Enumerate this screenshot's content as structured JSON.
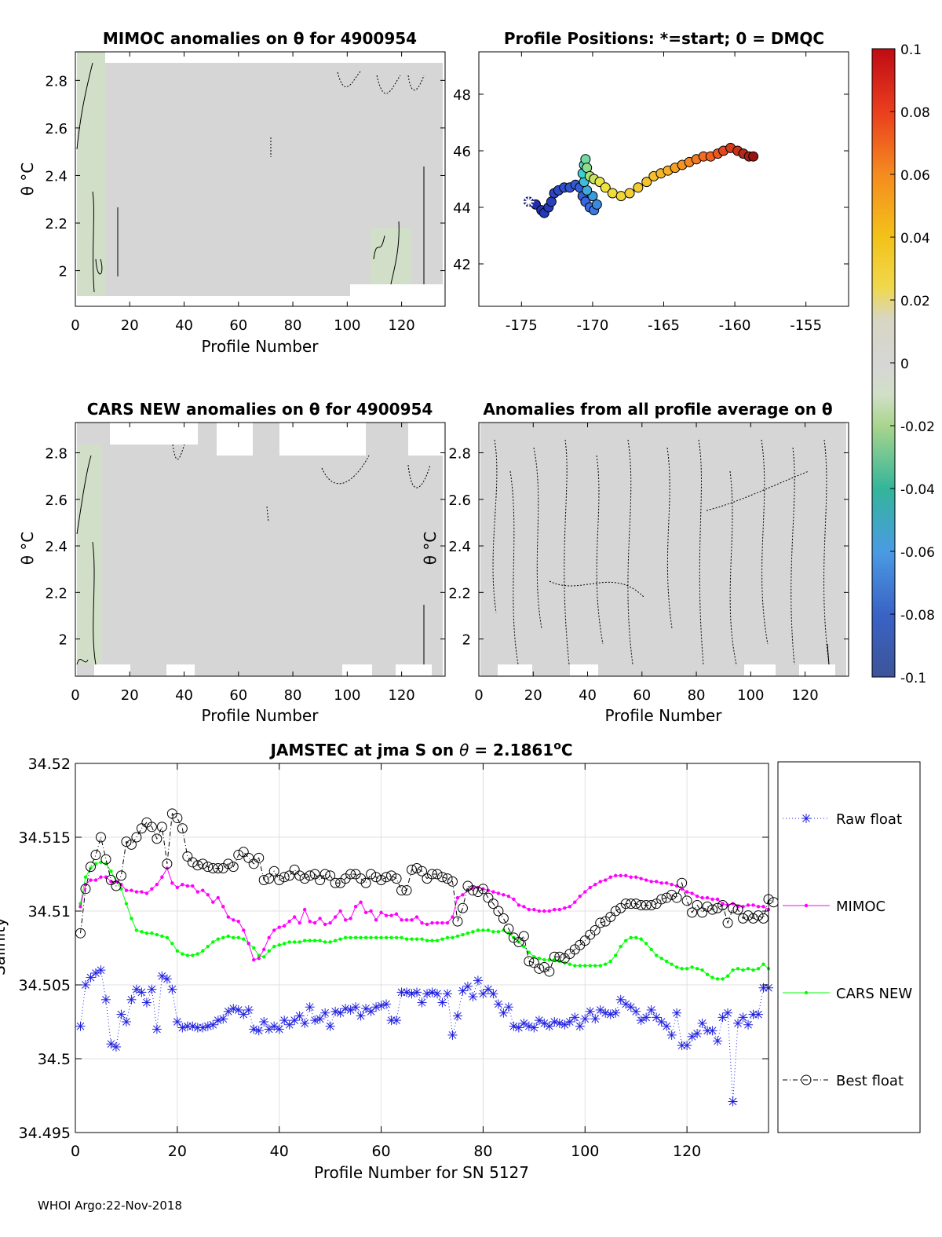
{
  "footer": "WHOI Argo:22-Nov-2018",
  "colors": {
    "raw": "#1f1fe0",
    "mimoc": "#ff00ff",
    "cars": "#00ff00",
    "best": "#000000",
    "anom_bg": "#d6d6d6",
    "anom_neg": "#d2dfc8",
    "grid": "#e0e0e0"
  },
  "chart_data": [
    {
      "id": "mimoc_anom",
      "type": "heatmap",
      "title": "MIMOC anomalies on θ  for 4900954",
      "ylabel": "θ °C",
      "xlabel": "Profile Number",
      "xlim": [
        0,
        136
      ],
      "ylim": [
        1.85,
        2.92
      ],
      "xticks": [
        "0",
        "20",
        "40",
        "60",
        "80",
        "100",
        "120"
      ],
      "yticks": [
        "2",
        "2.2",
        "2.4",
        "2.6",
        "2.8"
      ],
      "background_value": 0,
      "negative_bands": [
        [
          0,
          10
        ],
        [
          108,
          122
        ]
      ]
    },
    {
      "id": "positions",
      "type": "scatter",
      "title": "Profile Positions: *=start; 0 = DMQC",
      "xlim": [
        -178,
        -152
      ],
      "ylim": [
        40.5,
        49.5
      ],
      "xticks": [
        "-175",
        "-170",
        "-165",
        "-160",
        "-155"
      ],
      "yticks": [
        "42",
        "44",
        "46",
        "48"
      ],
      "track": [
        [
          -174.5,
          44.2
        ],
        [
          -174.0,
          44.1
        ],
        [
          -173.6,
          43.9
        ],
        [
          -173.4,
          43.8
        ],
        [
          -173.1,
          44.0
        ],
        [
          -172.9,
          44.2
        ],
        [
          -172.7,
          44.5
        ],
        [
          -172.4,
          44.6
        ],
        [
          -172.0,
          44.7
        ],
        [
          -171.6,
          44.7
        ],
        [
          -171.2,
          44.8
        ],
        [
          -170.9,
          44.7
        ],
        [
          -170.7,
          44.4
        ],
        [
          -170.5,
          44.2
        ],
        [
          -170.2,
          44.0
        ],
        [
          -169.9,
          43.9
        ],
        [
          -169.7,
          44.1
        ],
        [
          -170.0,
          44.4
        ],
        [
          -170.4,
          44.6
        ],
        [
          -170.6,
          44.9
        ],
        [
          -170.7,
          45.2
        ],
        [
          -170.6,
          45.5
        ],
        [
          -170.5,
          45.7
        ],
        [
          -170.4,
          45.4
        ],
        [
          -170.2,
          45.1
        ],
        [
          -169.9,
          45.0
        ],
        [
          -169.5,
          44.9
        ],
        [
          -169.1,
          44.7
        ],
        [
          -168.6,
          44.5
        ],
        [
          -168.0,
          44.4
        ],
        [
          -167.4,
          44.5
        ],
        [
          -166.8,
          44.7
        ],
        [
          -166.2,
          44.9
        ],
        [
          -165.7,
          45.1
        ],
        [
          -165.2,
          45.2
        ],
        [
          -164.7,
          45.3
        ],
        [
          -164.2,
          45.4
        ],
        [
          -163.7,
          45.5
        ],
        [
          -163.2,
          45.6
        ],
        [
          -162.7,
          45.7
        ],
        [
          -162.2,
          45.8
        ],
        [
          -161.7,
          45.8
        ],
        [
          -161.2,
          45.9
        ],
        [
          -160.8,
          46.0
        ],
        [
          -160.3,
          46.1
        ],
        [
          -159.8,
          46.0
        ],
        [
          -159.4,
          45.9
        ],
        [
          -159.0,
          45.8
        ],
        [
          -158.7,
          45.8
        ]
      ],
      "start": [
        -174.5,
        44.2
      ]
    },
    {
      "id": "cars_anom",
      "type": "heatmap",
      "title": "CARS NEW anomalies on θ for 4900954",
      "ylabel": "θ °C",
      "xlabel": "Profile Number",
      "xlim": [
        0,
        136
      ],
      "ylim": [
        1.84,
        2.93
      ],
      "xticks": [
        "0",
        "20",
        "40",
        "60",
        "80",
        "100",
        "120"
      ],
      "yticks": [
        "2",
        "2.2",
        "2.4",
        "2.6",
        "2.8"
      ],
      "background_value": 0,
      "negative_bands": [
        [
          0,
          10
        ]
      ]
    },
    {
      "id": "avg_anom",
      "type": "heatmap",
      "title": "Anomalies from all profile average on θ",
      "ylabel": "θ °C",
      "xlabel": "Profile Number",
      "xlim": [
        0,
        136
      ],
      "ylim": [
        1.84,
        2.93
      ],
      "xticks": [
        "0",
        "20",
        "40",
        "60",
        "80",
        "100",
        "120"
      ],
      "yticks": [
        "2",
        "2.2",
        "2.4",
        "2.6",
        "2.8"
      ],
      "background_value": 0
    },
    {
      "id": "colorbar",
      "type": "heatmap",
      "range": [
        -0.1,
        0.1
      ],
      "ticks": [
        "0.1",
        "0.08",
        "0.06",
        "0.04",
        "0.02",
        "0",
        "-0.02",
        "-0.04",
        "-0.06",
        "-0.08",
        "-0.1"
      ]
    },
    {
      "id": "jamstec",
      "type": "line",
      "title_prefix": "JAMSTEC at jma S on ",
      "title_theta": "θ",
      "title_value": " = 2.1861",
      "title_sup": "o",
      "title_unit": "C",
      "xlabel": "Profile Number for SN 5127",
      "ylabel": "Salinity",
      "xlim": [
        0,
        136
      ],
      "ylim": [
        34.495,
        34.52
      ],
      "xticks": [
        "0",
        "20",
        "40",
        "60",
        "80",
        "100",
        "120"
      ],
      "yticks": [
        "34.495",
        "34.5",
        "34.505",
        "34.51",
        "34.515",
        "34.52"
      ],
      "legend": [
        "Raw float",
        "MIMOC",
        "CARS NEW",
        "Best float"
      ],
      "series": [
        {
          "name": "Raw float",
          "values": [
            34.5022,
            34.505,
            34.5055,
            34.5058,
            34.506,
            34.504,
            34.501,
            34.5008,
            34.503,
            34.5025,
            34.504,
            34.5047,
            34.5045,
            34.5038,
            34.5047,
            34.502,
            34.5056,
            34.5054,
            34.5047,
            34.5025,
            34.5021,
            34.5022,
            34.5022,
            34.5021,
            34.5021,
            34.5022,
            34.5023,
            34.5026,
            34.5027,
            34.5032,
            34.5034,
            34.5033,
            34.503,
            34.5033,
            34.502,
            34.5019,
            34.5025,
            34.502,
            34.5022,
            34.502,
            34.5026,
            34.5023,
            34.5026,
            34.5029,
            34.5024,
            34.5035,
            34.5026,
            34.5027,
            34.5031,
            34.5022,
            34.5032,
            34.5031,
            34.5034,
            34.5033,
            34.5035,
            34.5029,
            34.5034,
            34.5032,
            34.5035,
            34.5036,
            34.5037,
            34.5026,
            34.5026,
            34.5045,
            34.5045,
            34.5044,
            34.5045,
            34.5038,
            34.5044,
            34.5045,
            34.5044,
            34.5038,
            34.5044,
            34.5016,
            34.5029,
            34.5046,
            34.5049,
            34.5042,
            34.5053,
            34.5044,
            34.5047,
            34.5044,
            34.5037,
            34.5031,
            34.5035,
            34.5022,
            34.5021,
            34.5024,
            34.5022,
            34.5021,
            34.5026,
            34.5024,
            34.5022,
            34.5025,
            34.5024,
            34.5023,
            34.5025,
            34.5028,
            34.5022,
            34.5027,
            34.5032,
            34.5027,
            34.5033,
            34.5031,
            34.503,
            34.5031,
            34.504,
            34.5037,
            34.5035,
            34.5032,
            34.5026,
            34.5028,
            34.5033,
            34.5028,
            34.5025,
            34.5022,
            34.5016,
            34.5031,
            34.5009,
            34.5009,
            34.5015,
            34.5017,
            34.5024,
            34.5019,
            34.5019,
            34.5012,
            34.5028,
            34.5031,
            34.4971,
            34.5024,
            34.5028,
            34.5023,
            34.503,
            34.503,
            34.5048,
            34.5048
          ]
        },
        {
          "name": "MIMOC",
          "values": [
            34.5103,
            34.5118,
            34.5121,
            34.5121,
            34.5123,
            34.5123,
            34.512,
            34.512,
            34.5118,
            34.5114,
            34.5114,
            34.5113,
            34.5113,
            34.5112,
            34.5115,
            34.5118,
            34.5123,
            34.5129,
            34.5119,
            34.5116,
            34.5118,
            34.5117,
            34.5117,
            34.5113,
            34.5114,
            34.5111,
            34.5106,
            34.5109,
            34.5103,
            34.5096,
            34.5094,
            34.5093,
            34.5087,
            34.5078,
            34.5067,
            34.5068,
            34.5074,
            34.5082,
            34.5087,
            34.5089,
            34.509,
            34.5093,
            34.5096,
            34.5092,
            34.5101,
            34.5093,
            34.5092,
            34.5095,
            34.5091,
            34.5092,
            34.5096,
            34.51,
            34.5094,
            34.5095,
            34.5103,
            34.5106,
            34.5099,
            34.51,
            34.5094,
            34.5099,
            34.5097,
            34.5097,
            34.5098,
            34.5094,
            34.5094,
            34.5094,
            34.5096,
            34.5092,
            34.5091,
            34.5092,
            34.5092,
            34.5092,
            34.5092,
            34.5096,
            34.5109,
            34.5111,
            34.5114,
            34.5116,
            34.5116,
            34.5115,
            34.5114,
            34.5113,
            34.5112,
            34.5111,
            34.511,
            34.5108,
            34.5104,
            34.5103,
            34.5101,
            34.5101,
            34.51,
            34.51,
            34.51,
            34.5101,
            34.5101,
            34.5102,
            34.5103,
            34.5106,
            34.511,
            34.5113,
            34.5116,
            34.5118,
            34.512,
            34.5121,
            34.5123,
            34.5124,
            34.5124,
            34.5124,
            34.5123,
            34.5123,
            34.5122,
            34.5121,
            34.512,
            34.512,
            34.5119,
            34.5119,
            34.5118,
            34.5117,
            34.5115,
            34.5113,
            34.5112,
            34.511,
            34.5109,
            34.5109,
            34.5108,
            34.5108,
            34.5105,
            34.5104,
            34.5105,
            34.5103,
            34.5103,
            34.5104,
            34.5104,
            34.5103,
            34.5103,
            34.5101
          ]
        },
        {
          "name": "CARS NEW",
          "values": [
            34.5105,
            34.5123,
            34.5129,
            34.5132,
            34.5133,
            34.5132,
            34.5127,
            34.512,
            34.5115,
            34.5105,
            34.5095,
            34.5087,
            34.5086,
            34.5085,
            34.5085,
            34.5084,
            34.5083,
            34.5082,
            34.5078,
            34.5073,
            34.5071,
            34.507,
            34.507,
            34.5071,
            34.5073,
            34.5076,
            34.5079,
            34.5081,
            34.5082,
            34.5083,
            34.5082,
            34.5082,
            34.5081,
            34.5078,
            34.5075,
            34.507,
            34.5069,
            34.5073,
            34.5076,
            34.5077,
            34.5078,
            34.5079,
            34.5079,
            34.5079,
            34.508,
            34.508,
            34.508,
            34.508,
            34.5079,
            34.5079,
            34.508,
            34.5081,
            34.5082,
            34.5082,
            34.5082,
            34.5082,
            34.5082,
            34.5082,
            34.5082,
            34.5082,
            34.5082,
            34.5082,
            34.5082,
            34.5082,
            34.5081,
            34.5081,
            34.5081,
            34.5081,
            34.508,
            34.508,
            34.508,
            34.5081,
            34.5082,
            34.5082,
            34.5083,
            34.5084,
            34.5085,
            34.5086,
            34.5087,
            34.5087,
            34.5087,
            34.5086,
            34.5086,
            34.5087,
            34.5085,
            34.5082,
            34.5079,
            34.5076,
            34.5072,
            34.5069,
            34.5068,
            34.5067,
            34.5067,
            34.5067,
            34.5066,
            34.5065,
            34.5064,
            34.5063,
            34.5063,
            34.5063,
            34.5063,
            34.5063,
            34.5063,
            34.5064,
            34.5066,
            34.507,
            34.5076,
            34.508,
            34.5082,
            34.5082,
            34.5081,
            34.5078,
            34.5074,
            34.507,
            34.5068,
            34.5066,
            34.5064,
            34.5062,
            34.5061,
            34.5061,
            34.5062,
            34.5061,
            34.506,
            34.5057,
            34.5055,
            34.5054,
            34.5054,
            34.5056,
            34.506,
            34.5061,
            34.506,
            34.5061,
            34.506,
            34.5061,
            34.5064,
            34.5061
          ]
        },
        {
          "name": "Best float",
          "values": [
            34.5085,
            34.5115,
            34.513,
            34.5138,
            34.515,
            34.5135,
            34.5121,
            34.5117,
            34.5124,
            34.5147,
            34.5145,
            34.515,
            34.5156,
            34.516,
            34.5157,
            34.5149,
            34.5157,
            34.5132,
            34.5166,
            34.5163,
            34.5156,
            34.5137,
            34.5133,
            34.5131,
            34.5132,
            34.513,
            34.5129,
            34.5129,
            34.5129,
            34.5132,
            34.513,
            34.5138,
            34.514,
            34.5136,
            34.5132,
            34.5136,
            34.5121,
            34.5122,
            34.5127,
            34.5121,
            34.5123,
            34.5124,
            34.5128,
            34.5124,
            34.5122,
            34.5124,
            34.5125,
            34.5121,
            34.5125,
            34.5124,
            34.5119,
            34.5119,
            34.5122,
            34.5125,
            34.5125,
            34.5122,
            34.5119,
            34.5125,
            34.5123,
            34.5121,
            34.5123,
            34.5124,
            34.5122,
            34.5114,
            34.5114,
            34.5128,
            34.5129,
            34.5127,
            34.5122,
            34.5125,
            34.5125,
            34.5123,
            34.5122,
            34.512,
            34.5093,
            34.5102,
            34.5117,
            34.5114,
            34.5113,
            34.5115,
            34.5109,
            34.5105,
            34.51,
            34.5095,
            34.5088,
            34.5082,
            34.5079,
            34.5083,
            34.5066,
            34.5065,
            34.5061,
            34.5062,
            34.5059,
            34.5069,
            34.5069,
            34.5068,
            34.5071,
            34.5074,
            34.5077,
            34.508,
            34.5084,
            34.5087,
            34.5092,
            34.5093,
            34.5096,
            34.51,
            34.5102,
            34.5105,
            34.5105,
            34.5105,
            34.5104,
            34.5104,
            34.5104,
            34.5105,
            34.5108,
            34.5109,
            34.5111,
            34.5109,
            34.5119,
            34.5107,
            34.5099,
            34.5104,
            34.5099,
            34.5103,
            34.5101,
            34.5102,
            34.5104,
            34.5092,
            34.5102,
            34.5101,
            34.5095,
            34.5097,
            34.5095,
            34.5097,
            34.5095,
            34.5108,
            34.5106
          ]
        }
      ]
    }
  ]
}
